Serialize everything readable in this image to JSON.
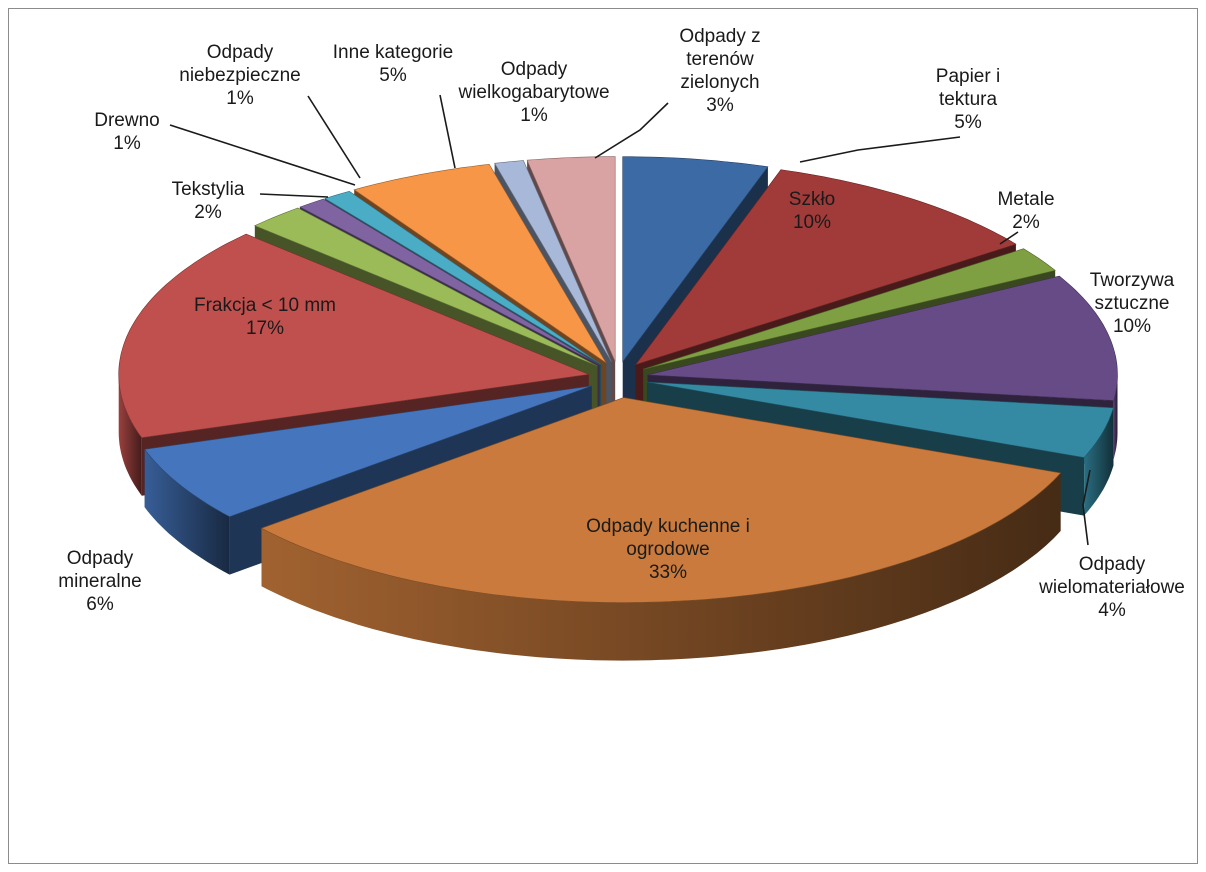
{
  "chart_data": {
    "type": "pie",
    "variant": "3d-exploded",
    "title": "",
    "legend": "none",
    "slices": [
      {
        "label": "Papier i tektura",
        "percent_label": "5%",
        "value": 5,
        "color": "#3c6aa5"
      },
      {
        "label": "Szkło",
        "percent_label": "10%",
        "value": 10,
        "color": "#a13b39"
      },
      {
        "label": "Metale",
        "percent_label": "2%",
        "value": 2,
        "color": "#7ea043"
      },
      {
        "label": "Tworzywa sztuczne",
        "percent_label": "10%",
        "value": 10,
        "color": "#664b86"
      },
      {
        "label": "Odpady wielomateriałowe",
        "percent_label": "4%",
        "value": 4,
        "color": "#348aa3"
      },
      {
        "label": "Odpady kuchenne i ogrodowe",
        "percent_label": "33%",
        "value": 33,
        "color": "#c97a3c"
      },
      {
        "label": "Odpady mineralne",
        "percent_label": "6%",
        "value": 6,
        "color": "#4576bd"
      },
      {
        "label": "Frakcja < 10 mm",
        "percent_label": "17%",
        "value": 17,
        "color": "#c0504d"
      },
      {
        "label": "Tekstylia",
        "percent_label": "2%",
        "value": 2,
        "color": "#9bbb59"
      },
      {
        "label": "Drewno",
        "percent_label": "1%",
        "value": 1,
        "color": "#8064a2"
      },
      {
        "label": "Odpady niebezpieczne",
        "percent_label": "1%",
        "value": 1,
        "color": "#4bacc6"
      },
      {
        "label": "Inne kategorie",
        "percent_label": "5%",
        "value": 5,
        "color": "#f79646"
      },
      {
        "label": "Odpady wielkogabarytowe",
        "percent_label": "1%",
        "value": 1,
        "color": "#a8b8d8"
      },
      {
        "label": "Odpady z terenów zielonych",
        "percent_label": "3%",
        "value": 3,
        "color": "#d9a3a3"
      }
    ]
  }
}
